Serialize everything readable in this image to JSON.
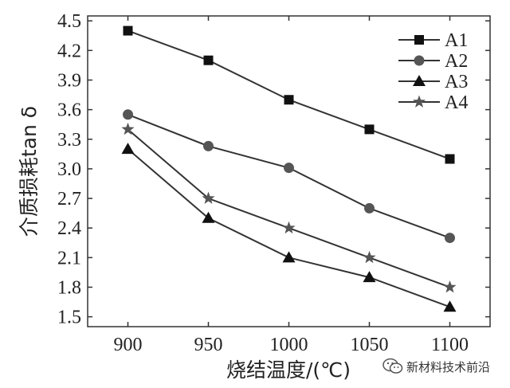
{
  "chart_data": {
    "type": "line",
    "title": "",
    "xlabel": "烧结温度/(℃)",
    "ylabel": "介质损耗tan δ",
    "x": [
      900,
      950,
      1000,
      1050,
      1100
    ],
    "xlim": [
      875,
      1125
    ],
    "ylim": [
      1.4,
      4.55
    ],
    "yticks": [
      "1.5",
      "1.8",
      "2.1",
      "2.4",
      "2.7",
      "3.0",
      "3.3",
      "3.6",
      "3.9",
      "4.2",
      "4.5"
    ],
    "xticks": [
      "900",
      "950",
      "1000",
      "1050",
      "1100"
    ],
    "grid": false,
    "legend": "top-right",
    "series": [
      {
        "name": "A1",
        "marker": "square",
        "values": [
          4.4,
          4.1,
          3.7,
          3.4,
          3.1
        ]
      },
      {
        "name": "A2",
        "marker": "circle",
        "values": [
          3.55,
          3.23,
          3.01,
          2.6,
          2.3
        ]
      },
      {
        "name": "A3",
        "marker": "triangle",
        "values": [
          3.2,
          2.5,
          2.1,
          1.9,
          1.6
        ]
      },
      {
        "name": "A4",
        "marker": "star",
        "values": [
          3.4,
          2.7,
          2.4,
          2.1,
          1.8
        ]
      }
    ],
    "colors": {
      "line": "#333333",
      "marker": "#111111",
      "marker_a2": "#555555",
      "marker_a4": "#555555",
      "axis": "#333333"
    }
  },
  "watermark": {
    "icon": "wechat-icon",
    "text": "新材料技术前沿"
  }
}
